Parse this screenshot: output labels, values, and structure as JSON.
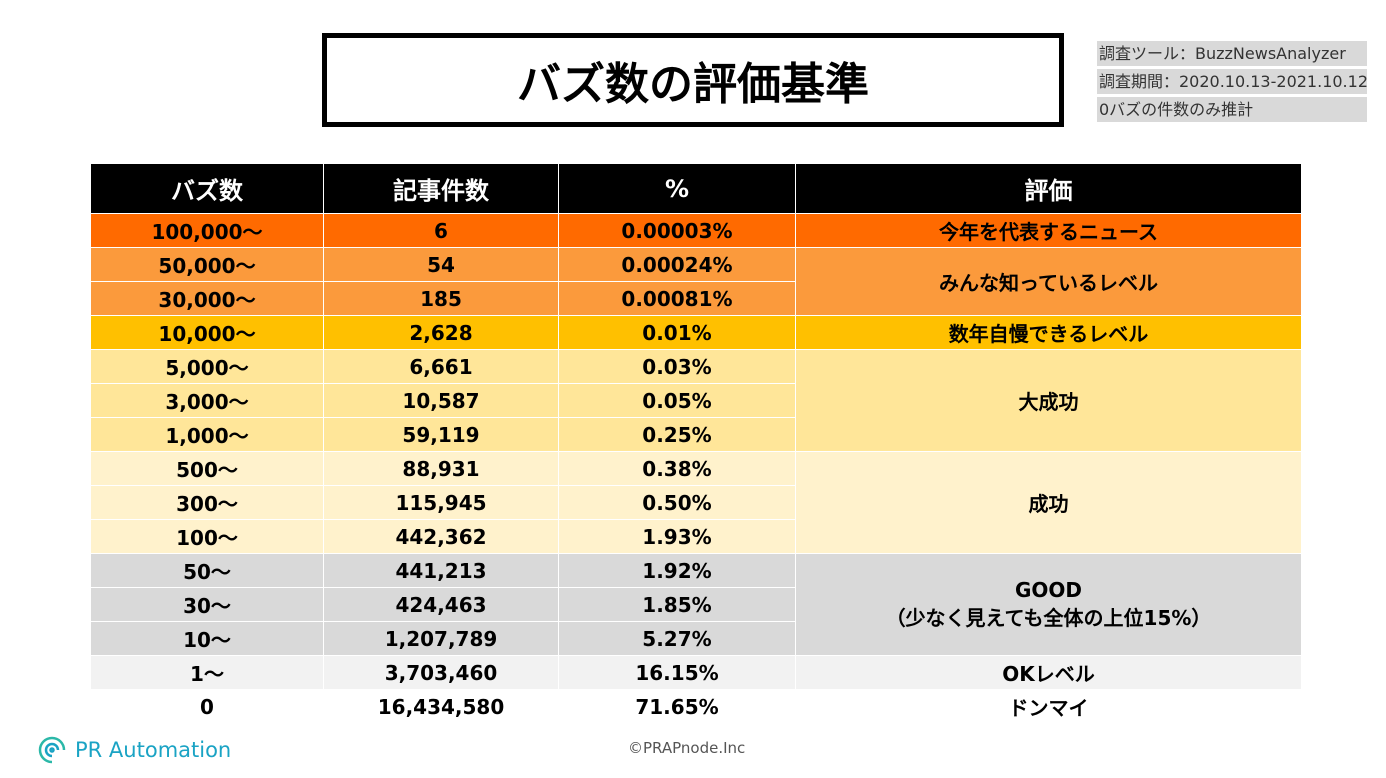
{
  "title": "バズ数の評価基準",
  "notes": [
    "調査ツール：BuzzNewsAnalyzer",
    "調査期間：2020.10.13-2021.10.12",
    "0バズの件数のみ推計"
  ],
  "table": {
    "headers": [
      "バズ数",
      "記事件数",
      "%",
      "評価"
    ],
    "rows": [
      {
        "buzz": "100,000〜",
        "count": "6",
        "pct": "0.00003%",
        "cls": "c1",
        "eval": "今年を代表するニュース",
        "span": 1
      },
      {
        "buzz": "50,000〜",
        "count": "54",
        "pct": "0.00024%",
        "cls": "c2",
        "eval": "みんな知っているレベル",
        "span": 2
      },
      {
        "buzz": "30,000〜",
        "count": "185",
        "pct": "0.00081%",
        "cls": "c2"
      },
      {
        "buzz": "10,000〜",
        "count": "2,628",
        "pct": "0.01%",
        "cls": "c3",
        "eval": "数年自慢できるレベル",
        "span": 1
      },
      {
        "buzz": "5,000〜",
        "count": "6,661",
        "pct": "0.03%",
        "cls": "c4",
        "eval": "大成功",
        "span": 3
      },
      {
        "buzz": "3,000〜",
        "count": "10,587",
        "pct": "0.05%",
        "cls": "c4"
      },
      {
        "buzz": "1,000〜",
        "count": "59,119",
        "pct": "0.25%",
        "cls": "c4"
      },
      {
        "buzz": "500〜",
        "count": "88,931",
        "pct": "0.38%",
        "cls": "c5",
        "eval": "成功",
        "span": 3
      },
      {
        "buzz": "300〜",
        "count": "115,945",
        "pct": "0.50%",
        "cls": "c5"
      },
      {
        "buzz": "100〜",
        "count": "442,362",
        "pct": "1.93%",
        "cls": "c5"
      },
      {
        "buzz": "50〜",
        "count": "441,213",
        "pct": "1.92%",
        "cls": "c6",
        "eval": "GOOD",
        "eval2": "（少なく見えても全体の上位15%）",
        "span": 3
      },
      {
        "buzz": "30〜",
        "count": "424,463",
        "pct": "1.85%",
        "cls": "c6"
      },
      {
        "buzz": "10〜",
        "count": "1,207,789",
        "pct": "5.27%",
        "cls": "c6"
      },
      {
        "buzz": "1〜",
        "count": "3,703,460",
        "pct": "16.15%",
        "cls": "c7",
        "eval": "OKレベル",
        "span": 1
      },
      {
        "buzz": "0",
        "count": "16,434,580",
        "pct": "71.65%",
        "cls": "c8",
        "eval": "ドンマイ",
        "span": 1
      }
    ]
  },
  "footer": {
    "logo": "PR Automation",
    "copyright": "©PRAPnode.Inc"
  }
}
